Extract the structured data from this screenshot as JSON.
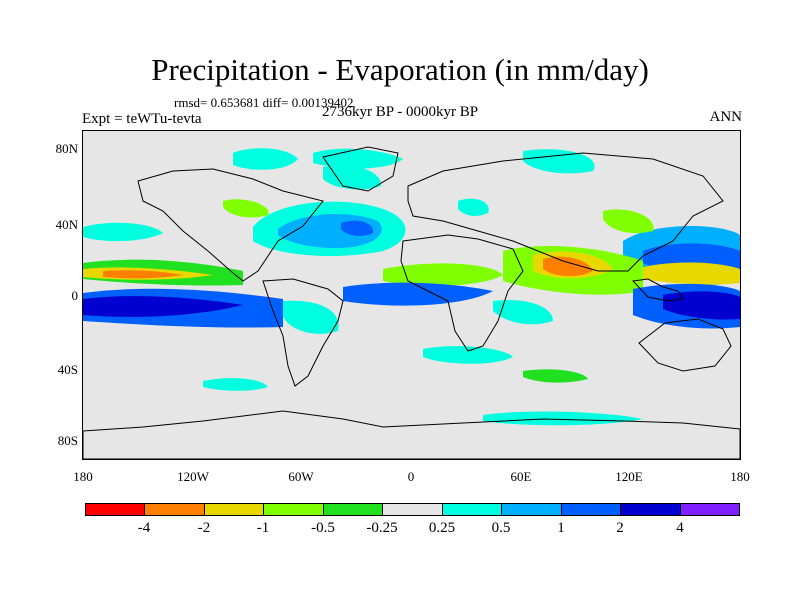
{
  "title": "Precipitation - Evaporation (in mm/day)",
  "stats": "rmsd= 0.653681 diff= 0.00139402",
  "experiment": "Expt = teWTu-tevta",
  "period": "2736kyr BP - 0000kyr BP",
  "season": "ANN",
  "axes": {
    "lat_ticks": [
      "80N",
      "40N",
      "0",
      "40S",
      "80S"
    ],
    "lon_ticks": [
      "180",
      "120W",
      "60W",
      "0",
      "60E",
      "120E",
      "180"
    ]
  },
  "colorbar": {
    "labels": [
      "-4",
      "-2",
      "-1",
      "-0.5",
      "-0.25",
      "0.25",
      "0.5",
      "1",
      "2",
      "4"
    ],
    "colors": [
      "#ff0000",
      "#ff8000",
      "#e8d800",
      "#80ff00",
      "#20e020",
      "#e6e6e6",
      "#00ffe0",
      "#00b0ff",
      "#0060ff",
      "#0000d0",
      "#8020ff"
    ]
  }
}
